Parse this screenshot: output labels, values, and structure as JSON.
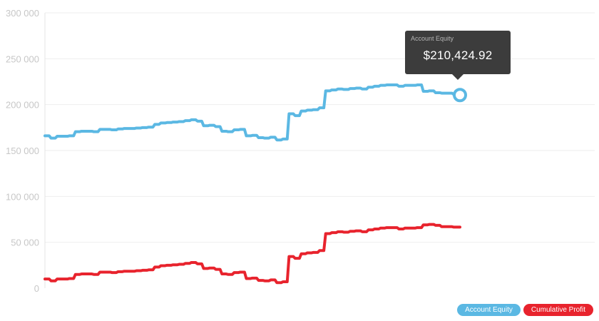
{
  "chart_data": {
    "type": "line",
    "title": "",
    "xlabel": "",
    "ylabel": "",
    "ylim": [
      0,
      300000
    ],
    "yticks": [
      0,
      50000,
      100000,
      150000,
      200000,
      250000,
      300000
    ],
    "ytick_labels": [
      "0",
      "50 000",
      "100 000",
      "150 000",
      "200 000",
      "250 000",
      "300 000"
    ],
    "grid": true,
    "legend_position": "bottom-right",
    "series": [
      {
        "name": "Account Equity",
        "color": "#5bb8e3",
        "values": [
          166000,
          163500,
          165500,
          165500,
          166000,
          170500,
          171000,
          171000,
          170500,
          173000,
          173000,
          172500,
          173500,
          174000,
          174000,
          174500,
          175000,
          175500,
          178500,
          180000,
          180500,
          181000,
          181500,
          182500,
          183500,
          182000,
          177000,
          177500,
          176000,
          171000,
          170500,
          172500,
          173000,
          166000,
          166500,
          164000,
          163500,
          164500,
          161500,
          162500,
          190000,
          188000,
          193000,
          194000,
          194500,
          196500,
          215000,
          216000,
          217000,
          216500,
          217500,
          218000,
          217000,
          219000,
          220000,
          221000,
          221500,
          221500,
          220000,
          221000,
          221000,
          221500,
          214500,
          215000,
          213000,
          212500,
          212500,
          211000,
          210424.92
        ]
      },
      {
        "name": "Cumulative Profit",
        "color": "#e8232d",
        "values": [
          10000,
          8000,
          10000,
          10000,
          10500,
          15000,
          15500,
          15500,
          15000,
          17500,
          17500,
          17000,
          18000,
          18500,
          18500,
          19000,
          19500,
          20000,
          23000,
          24500,
          25000,
          25500,
          26000,
          27000,
          28000,
          26500,
          21500,
          22000,
          20500,
          15500,
          15000,
          17000,
          17500,
          10500,
          11000,
          8500,
          8000,
          9000,
          6000,
          7000,
          34500,
          32500,
          37500,
          38500,
          39000,
          41000,
          59500,
          60500,
          61500,
          61000,
          62000,
          62500,
          61500,
          63500,
          64500,
          65500,
          66000,
          66000,
          64500,
          65500,
          65500,
          66000,
          69000,
          69500,
          68500,
          67000,
          67000,
          66500,
          66500
        ]
      }
    ]
  },
  "tooltip": {
    "series": "Account Equity",
    "value": "$210,424.92"
  },
  "legend": {
    "items": [
      {
        "label": "Account Equity",
        "color": "#5bb8e3"
      },
      {
        "label": "Cumulative Profit",
        "color": "#e8232d"
      }
    ]
  }
}
